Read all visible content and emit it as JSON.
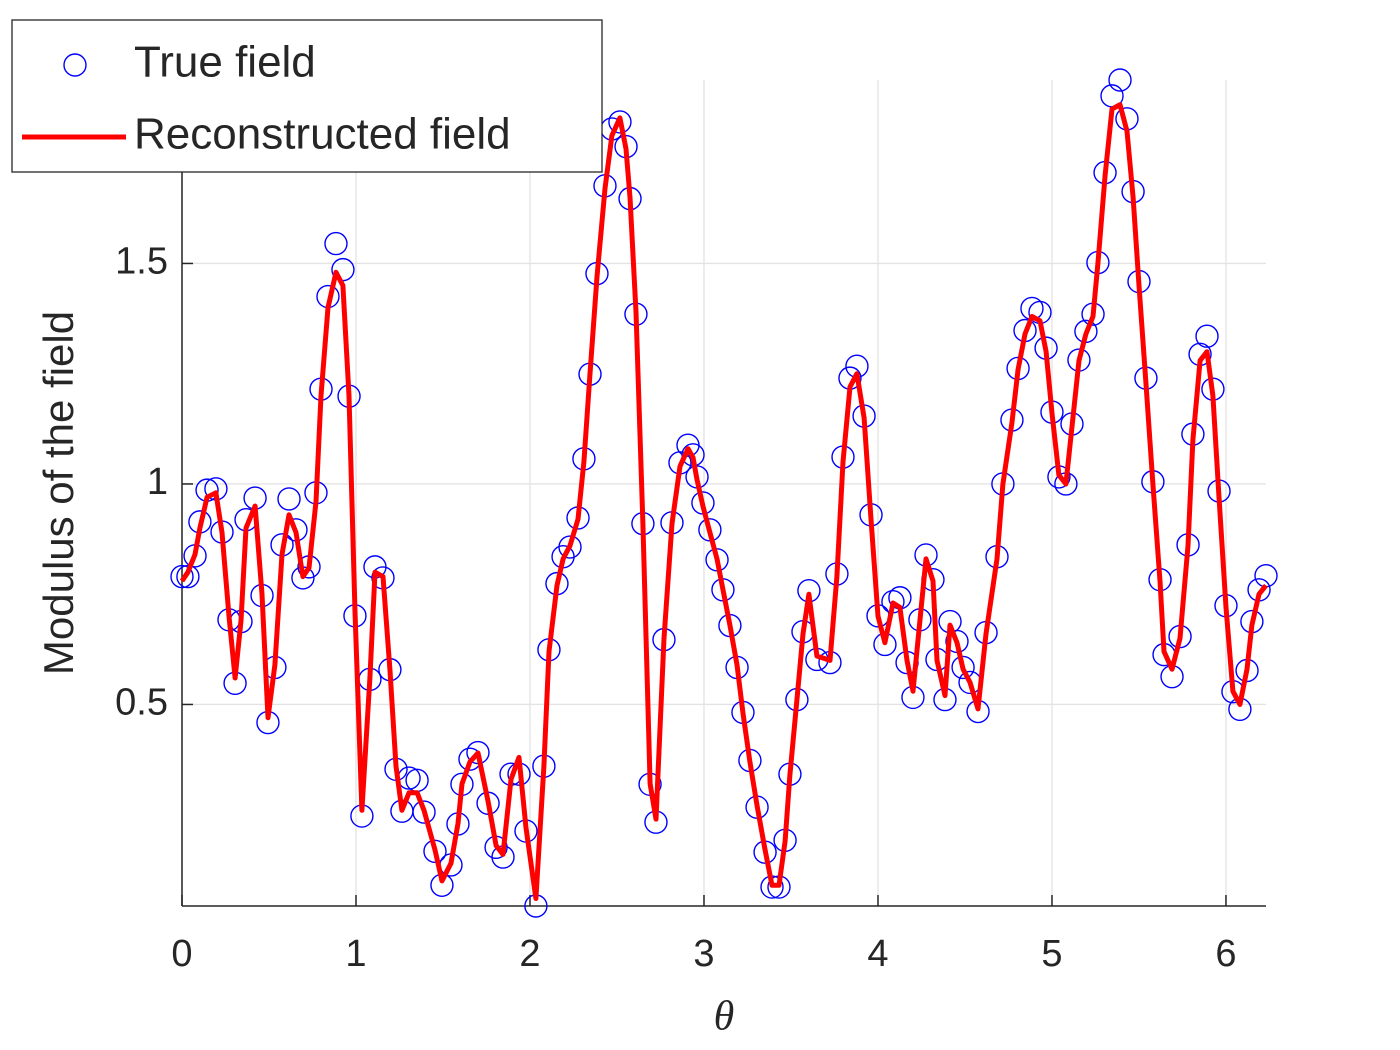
{
  "chart_data": {
    "type": "line",
    "xlabel": "θ",
    "ylabel": "Modulus of the field",
    "xlim": [
      0,
      6.23
    ],
    "ylim": [
      0.043,
      1.916
    ],
    "xticks": [
      0,
      1,
      2,
      3,
      4,
      5,
      6
    ],
    "yticks": [
      0.5,
      1,
      1.5
    ],
    "grid": true,
    "legend": "upper left",
    "series": [
      {
        "name": "True field",
        "color": "#0000ff",
        "mode": "markers",
        "x": [
          0,
          0.034,
          0.075,
          0.103,
          0.144,
          0.195,
          0.23,
          0.27,
          0.305,
          0.339,
          0.368,
          0.42,
          0.46,
          0.494,
          0.534,
          0.575,
          0.615,
          0.655,
          0.695,
          0.73,
          0.77,
          0.799,
          0.839,
          0.885,
          0.925,
          0.96,
          0.994,
          1.034,
          1.08,
          1.109,
          1.155,
          1.195,
          1.23,
          1.264,
          1.305,
          1.351,
          1.391,
          1.454,
          1.494,
          1.546,
          1.586,
          1.609,
          1.655,
          1.701,
          1.759,
          1.805,
          1.845,
          1.891,
          1.937,
          1.977,
          2.034,
          2.08,
          2.109,
          2.155,
          2.19,
          2.23,
          2.276,
          2.31,
          2.345,
          2.385,
          2.431,
          2.471,
          2.517,
          2.552,
          2.575,
          2.609,
          2.649,
          2.69,
          2.724,
          2.77,
          2.816,
          2.862,
          2.908,
          2.937,
          2.96,
          2.994,
          3.034,
          3.075,
          3.109,
          3.149,
          3.19,
          3.224,
          3.264,
          3.305,
          3.351,
          3.391,
          3.431,
          3.466,
          3.494,
          3.534,
          3.569,
          3.603,
          3.649,
          3.724,
          3.764,
          3.799,
          3.839,
          3.879,
          3.92,
          3.96,
          4,
          4.04,
          4.086,
          4.126,
          4.167,
          4.201,
          4.241,
          4.276,
          4.316,
          4.339,
          4.385,
          4.414,
          4.454,
          4.489,
          4.529,
          4.575,
          4.621,
          4.684,
          4.718,
          4.77,
          4.805,
          4.845,
          4.885,
          4.931,
          4.966,
          5,
          5.04,
          5.08,
          5.115,
          5.155,
          5.195,
          5.236,
          5.264,
          5.305,
          5.345,
          5.391,
          5.431,
          5.466,
          5.5,
          5.54,
          5.58,
          5.621,
          5.644,
          5.69,
          5.736,
          5.782,
          5.81,
          5.851,
          5.891,
          5.925,
          5.96,
          6,
          6.04,
          6.08,
          6.121,
          6.149,
          6.19,
          6.23
        ],
        "values": [
          0.79,
          0.79,
          0.837,
          0.914,
          0.986,
          0.989,
          0.891,
          0.692,
          0.548,
          0.688,
          0.919,
          0.968,
          0.747,
          0.459,
          0.584,
          0.862,
          0.966,
          0.896,
          0.787,
          0.812,
          0.98,
          1.215,
          1.425,
          1.545,
          1.486,
          1.199,
          0.701,
          0.247,
          0.557,
          0.812,
          0.787,
          0.579,
          0.353,
          0.258,
          0.333,
          0.328,
          0.256,
          0.167,
          0.09,
          0.136,
          0.229,
          0.319,
          0.376,
          0.391,
          0.276,
          0.176,
          0.154,
          0.342,
          0.342,
          0.213,
          0.043,
          0.36,
          0.624,
          0.774,
          0.835,
          0.857,
          0.923,
          1.057,
          1.249,
          1.477,
          1.676,
          1.805,
          1.821,
          1.765,
          1.647,
          1.385,
          0.91,
          0.319,
          0.233,
          0.647,
          0.912,
          1.048,
          1.088,
          1.066,
          1.016,
          0.957,
          0.896,
          0.828,
          0.76,
          0.679,
          0.584,
          0.482,
          0.373,
          0.267,
          0.165,
          0.086,
          0.086,
          0.192,
          0.342,
          0.511,
          0.665,
          0.758,
          0.602,
          0.595,
          0.796,
          1.061,
          1.24,
          1.267,
          1.154,
          0.93,
          0.701,
          0.636,
          0.733,
          0.742,
          0.595,
          0.516,
          0.692,
          0.839,
          0.783,
          0.602,
          0.511,
          0.688,
          0.643,
          0.584,
          0.55,
          0.484,
          0.663,
          0.835,
          1,
          1.145,
          1.262,
          1.348,
          1.398,
          1.389,
          1.308,
          1.163,
          1.016,
          1,
          1.136,
          1.281,
          1.346,
          1.385,
          1.502,
          1.706,
          1.88,
          1.916,
          1.828,
          1.663,
          1.459,
          1.24,
          1.005,
          0.783,
          0.613,
          0.563,
          0.654,
          0.862,
          1.113,
          1.294,
          1.335,
          1.215,
          0.984,
          0.724,
          0.529,
          0.489,
          0.577,
          0.688,
          0.76,
          0.792
        ]
      },
      {
        "name": "Reconstructed field",
        "color": "#ff0000",
        "mode": "line",
        "x": [
          0,
          0.034,
          0.075,
          0.103,
          0.144,
          0.195,
          0.23,
          0.27,
          0.305,
          0.339,
          0.368,
          0.42,
          0.46,
          0.494,
          0.534,
          0.575,
          0.615,
          0.655,
          0.695,
          0.73,
          0.77,
          0.799,
          0.839,
          0.885,
          0.925,
          0.96,
          0.994,
          1.034,
          1.08,
          1.109,
          1.155,
          1.195,
          1.23,
          1.264,
          1.305,
          1.351,
          1.391,
          1.454,
          1.494,
          1.546,
          1.586,
          1.609,
          1.655,
          1.701,
          1.759,
          1.805,
          1.845,
          1.891,
          1.937,
          1.977,
          2.034,
          2.08,
          2.109,
          2.155,
          2.19,
          2.23,
          2.276,
          2.31,
          2.345,
          2.385,
          2.431,
          2.471,
          2.517,
          2.552,
          2.575,
          2.609,
          2.649,
          2.69,
          2.724,
          2.77,
          2.816,
          2.862,
          2.908,
          2.937,
          2.96,
          2.994,
          3.034,
          3.075,
          3.109,
          3.149,
          3.19,
          3.224,
          3.264,
          3.305,
          3.351,
          3.391,
          3.431,
          3.466,
          3.494,
          3.534,
          3.569,
          3.603,
          3.649,
          3.724,
          3.764,
          3.799,
          3.839,
          3.879,
          3.92,
          3.96,
          4,
          4.04,
          4.086,
          4.126,
          4.167,
          4.201,
          4.241,
          4.276,
          4.316,
          4.339,
          4.385,
          4.414,
          4.454,
          4.489,
          4.529,
          4.575,
          4.621,
          4.684,
          4.718,
          4.77,
          4.805,
          4.845,
          4.885,
          4.931,
          4.966,
          5,
          5.04,
          5.08,
          5.115,
          5.155,
          5.195,
          5.236,
          5.264,
          5.305,
          5.345,
          5.391,
          5.431,
          5.466,
          5.5,
          5.54,
          5.58,
          5.621,
          5.644,
          5.69,
          5.736,
          5.782,
          5.81,
          5.851,
          5.891,
          5.925,
          5.96,
          6,
          6.04,
          6.08,
          6.121,
          6.149,
          6.19,
          6.23
        ],
        "values": [
          0.78,
          0.8,
          0.84,
          0.9,
          0.97,
          0.98,
          0.89,
          0.7,
          0.56,
          0.69,
          0.9,
          0.95,
          0.75,
          0.47,
          0.59,
          0.84,
          0.93,
          0.89,
          0.79,
          0.81,
          0.96,
          1.2,
          1.4,
          1.48,
          1.45,
          1.2,
          0.71,
          0.26,
          0.56,
          0.8,
          0.79,
          0.58,
          0.36,
          0.26,
          0.3,
          0.3,
          0.26,
          0.17,
          0.1,
          0.14,
          0.23,
          0.32,
          0.37,
          0.39,
          0.28,
          0.18,
          0.16,
          0.33,
          0.38,
          0.22,
          0.06,
          0.36,
          0.62,
          0.77,
          0.83,
          0.86,
          0.92,
          1.05,
          1.25,
          1.47,
          1.67,
          1.79,
          1.83,
          1.76,
          1.65,
          1.39,
          0.91,
          0.32,
          0.24,
          0.65,
          0.91,
          1.04,
          1.08,
          1.06,
          1.01,
          0.95,
          0.89,
          0.83,
          0.76,
          0.68,
          0.59,
          0.48,
          0.37,
          0.27,
          0.17,
          0.09,
          0.09,
          0.19,
          0.34,
          0.51,
          0.66,
          0.75,
          0.61,
          0.6,
          0.79,
          1.05,
          1.22,
          1.25,
          1.15,
          0.92,
          0.7,
          0.64,
          0.73,
          0.72,
          0.6,
          0.53,
          0.69,
          0.83,
          0.78,
          0.6,
          0.52,
          0.68,
          0.64,
          0.58,
          0.55,
          0.49,
          0.66,
          0.83,
          1,
          1.14,
          1.26,
          1.34,
          1.38,
          1.37,
          1.3,
          1.16,
          1.02,
          1,
          1.13,
          1.28,
          1.34,
          1.38,
          1.5,
          1.7,
          1.85,
          1.86,
          1.8,
          1.65,
          1.45,
          1.23,
          1,
          0.78,
          0.62,
          0.58,
          0.65,
          0.86,
          1.1,
          1.28,
          1.3,
          1.2,
          0.97,
          0.72,
          0.53,
          0.5,
          0.58,
          0.68,
          0.75,
          0.77
        ]
      }
    ]
  }
}
